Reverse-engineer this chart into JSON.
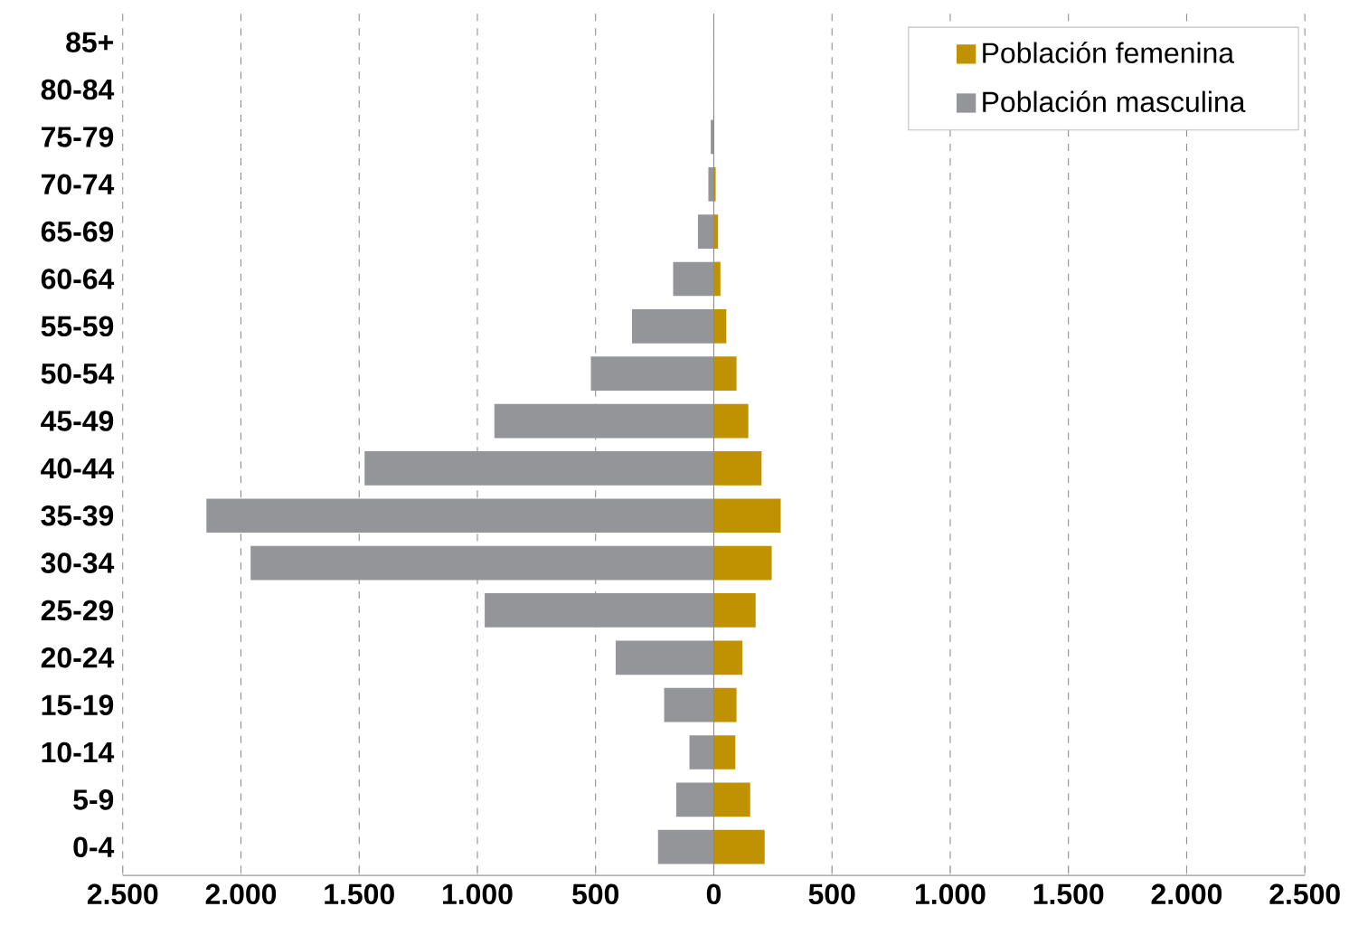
{
  "chart_data": {
    "type": "bar",
    "orientation": "horizontal",
    "categories": [
      "85+",
      "80-84",
      "75-79",
      "70-74",
      "65-69",
      "60-64",
      "55-59",
      "50-54",
      "45-49",
      "40-44",
      "35-39",
      "30-34",
      "25-29",
      "20-24",
      "15-19",
      "10-14",
      "5-9",
      "0-4"
    ],
    "series": [
      {
        "name": "Población femenina",
        "color": "#c09100",
        "values": [
          null,
          null,
          null,
          8,
          18,
          28,
          53,
          96,
          146,
          202,
          283,
          245,
          177,
          121,
          96,
          91,
          154,
          215
        ]
      },
      {
        "name": "Población masculina",
        "color": "#939598",
        "values": [
          null,
          null,
          -13,
          -23,
          -67,
          -172,
          -346,
          -520,
          -928,
          -1477,
          -2146,
          -1959,
          -969,
          -415,
          -210,
          -103,
          -159,
          -236
        ]
      }
    ],
    "xlim": [
      -2500,
      2500
    ],
    "xticks": [
      {
        "value": -2500,
        "label": "2.500"
      },
      {
        "value": -2000,
        "label": "2.000"
      },
      {
        "value": -1500,
        "label": "1.500"
      },
      {
        "value": -1000,
        "label": "1.000"
      },
      {
        "value": -500,
        "label": "500"
      },
      0,
      500,
      {
        "value": 1000,
        "label": "1.000"
      },
      {
        "value": 1500,
        "label": "1.500"
      },
      {
        "value": 2000,
        "label": "2.000"
      },
      {
        "value": 2500,
        "label": "2.500"
      }
    ],
    "grid": "x",
    "legend": "top right",
    "stacked": true
  }
}
